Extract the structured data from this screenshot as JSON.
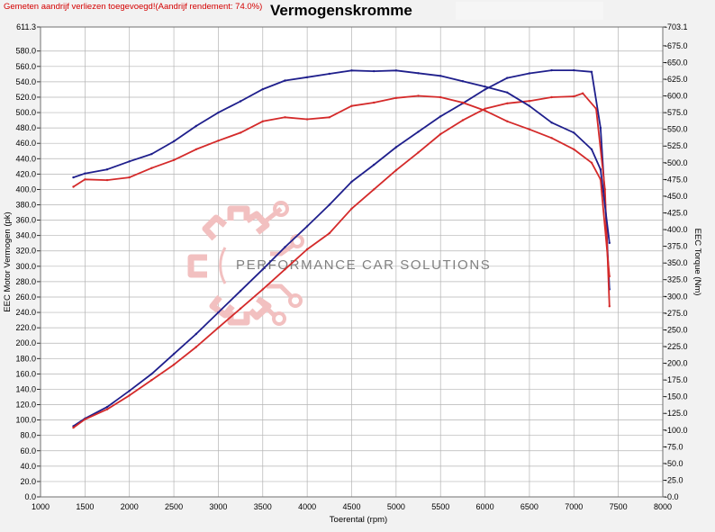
{
  "header": {
    "note": "Gemeten aandrijf verliezen toegevoegd!(Aandrijf rendement: 74.0%)",
    "title": "Vermogenskromme"
  },
  "watermark": {
    "text": "PERFORMANCE CAR SOLUTIONS"
  },
  "colors": {
    "tuned": "#1f1f8c",
    "stock": "#d42a2a",
    "grid": "#b4b4b4",
    "logo": "#f2c0c0"
  },
  "chart_data": {
    "type": "line",
    "xlabel": "Toerental (rpm)",
    "ylabel": "EEC Motor Vermogen (pk)",
    "ylabel_right": "EEC Torque (Nm)",
    "xlim": [
      1000,
      8000
    ],
    "ylim": [
      0,
      611.3
    ],
    "ylim_right": [
      0,
      703.1
    ],
    "x_ticks": [
      "1000",
      "1500",
      "2000",
      "2500",
      "3000",
      "3500",
      "4000",
      "4500",
      "5000",
      "5500",
      "6000",
      "6500",
      "7000",
      "7500",
      "8000"
    ],
    "y_ticks": [
      "0.0",
      "20.0",
      "40.0",
      "60.0",
      "80.0",
      "100.0",
      "120.0",
      "140.0",
      "160.0",
      "180.0",
      "200.0",
      "220.0",
      "240.0",
      "260.0",
      "280.0",
      "300.0",
      "320.0",
      "340.0",
      "360.0",
      "380.0",
      "400.0",
      "420.0",
      "440.0",
      "460.0",
      "480.0",
      "500.0",
      "520.0",
      "540.0",
      "560.0",
      "580.0",
      "611.3"
    ],
    "y_ticks_right": [
      "0.0",
      "25.0",
      "50.0",
      "75.0",
      "100.0",
      "125.0",
      "150.0",
      "175.0",
      "200.0",
      "225.0",
      "250.0",
      "275.0",
      "300.0",
      "325.0",
      "350.0",
      "375.0",
      "400.0",
      "425.0",
      "450.0",
      "475.0",
      "500.0",
      "525.0",
      "550.0",
      "575.0",
      "600.0",
      "625.0",
      "650.0",
      "675.0",
      "703.1"
    ],
    "series": [
      {
        "axis": "left",
        "color": "tuned",
        "points": [
          [
            1370,
            92
          ],
          [
            1500,
            102
          ],
          [
            1750,
            117
          ],
          [
            2000,
            138
          ],
          [
            2250,
            160
          ],
          [
            2500,
            186
          ],
          [
            2750,
            212
          ],
          [
            3000,
            240
          ],
          [
            3250,
            268
          ],
          [
            3500,
            296
          ],
          [
            3750,
            325
          ],
          [
            4000,
            352
          ],
          [
            4250,
            380
          ],
          [
            4500,
            410
          ],
          [
            4750,
            432
          ],
          [
            5000,
            455
          ],
          [
            5250,
            475
          ],
          [
            5500,
            495
          ],
          [
            5750,
            512
          ],
          [
            6000,
            530
          ],
          [
            6250,
            545
          ],
          [
            6500,
            551
          ],
          [
            6750,
            555
          ],
          [
            7000,
            555
          ],
          [
            7200,
            553
          ],
          [
            7300,
            480
          ],
          [
            7350,
            390
          ],
          [
            7400,
            270
          ]
        ]
      },
      {
        "axis": "left",
        "color": "stock",
        "points": [
          [
            1370,
            90
          ],
          [
            1500,
            101
          ],
          [
            1750,
            114
          ],
          [
            2000,
            132
          ],
          [
            2250,
            152
          ],
          [
            2500,
            172
          ],
          [
            2750,
            195
          ],
          [
            3000,
            220
          ],
          [
            3250,
            245
          ],
          [
            3500,
            270
          ],
          [
            3750,
            296
          ],
          [
            4000,
            322
          ],
          [
            4250,
            343
          ],
          [
            4500,
            375
          ],
          [
            4750,
            400
          ],
          [
            5000,
            425
          ],
          [
            5250,
            448
          ],
          [
            5500,
            472
          ],
          [
            5750,
            490
          ],
          [
            6000,
            505
          ],
          [
            6250,
            512
          ],
          [
            6500,
            515
          ],
          [
            6750,
            520
          ],
          [
            7000,
            521
          ],
          [
            7100,
            525
          ],
          [
            7250,
            505
          ],
          [
            7350,
            400
          ],
          [
            7400,
            248
          ]
        ]
      },
      {
        "axis": "right",
        "color": "tuned",
        "points": [
          [
            1370,
            478
          ],
          [
            1500,
            484
          ],
          [
            1750,
            490
          ],
          [
            2000,
            502
          ],
          [
            2250,
            513
          ],
          [
            2500,
            532
          ],
          [
            2750,
            555
          ],
          [
            3000,
            575
          ],
          [
            3250,
            592
          ],
          [
            3500,
            610
          ],
          [
            3750,
            623
          ],
          [
            4000,
            628
          ],
          [
            4250,
            633
          ],
          [
            4500,
            638
          ],
          [
            4750,
            637
          ],
          [
            5000,
            638
          ],
          [
            5250,
            634
          ],
          [
            5500,
            630
          ],
          [
            5750,
            622
          ],
          [
            6000,
            614
          ],
          [
            6250,
            605
          ],
          [
            6500,
            585
          ],
          [
            6750,
            560
          ],
          [
            7000,
            545
          ],
          [
            7200,
            520
          ],
          [
            7300,
            490
          ],
          [
            7400,
            380
          ]
        ]
      },
      {
        "axis": "right",
        "color": "stock",
        "points": [
          [
            1370,
            464
          ],
          [
            1500,
            475
          ],
          [
            1750,
            474
          ],
          [
            2000,
            478
          ],
          [
            2250,
            492
          ],
          [
            2500,
            504
          ],
          [
            2750,
            520
          ],
          [
            3000,
            533
          ],
          [
            3250,
            545
          ],
          [
            3500,
            562
          ],
          [
            3750,
            568
          ],
          [
            4000,
            565
          ],
          [
            4250,
            568
          ],
          [
            4500,
            585
          ],
          [
            4750,
            590
          ],
          [
            5000,
            597
          ],
          [
            5250,
            600
          ],
          [
            5500,
            598
          ],
          [
            5750,
            590
          ],
          [
            6000,
            578
          ],
          [
            6250,
            562
          ],
          [
            6500,
            550
          ],
          [
            6750,
            537
          ],
          [
            7000,
            520
          ],
          [
            7200,
            500
          ],
          [
            7300,
            475
          ],
          [
            7400,
            330
          ]
        ]
      }
    ]
  }
}
